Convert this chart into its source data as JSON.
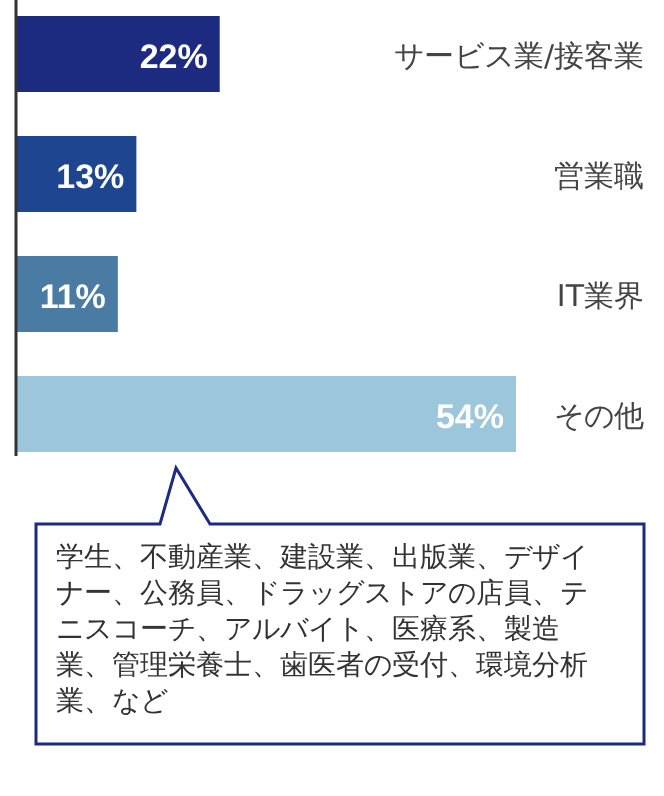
{
  "chart_data": {
    "type": "bar",
    "orientation": "horizontal",
    "categories": [
      "サービス業/接客業",
      "営業職",
      "IT業界",
      "その他"
    ],
    "values": [
      22,
      13,
      11,
      54
    ],
    "colors": [
      "#1c2a80",
      "#1e4590",
      "#4a7ca3",
      "#9cc6dc"
    ],
    "value_labels": [
      "22%",
      "13%",
      "11%",
      "54%"
    ],
    "annotations": [
      "学生、不動産業、建設業、出版業、デザイナー、公務員、ドラッグストアの店員、テニスコーチ、アルバイト、医療系、製造業、管理栄養士、歯医者の受付、環境分析業、など"
    ]
  }
}
